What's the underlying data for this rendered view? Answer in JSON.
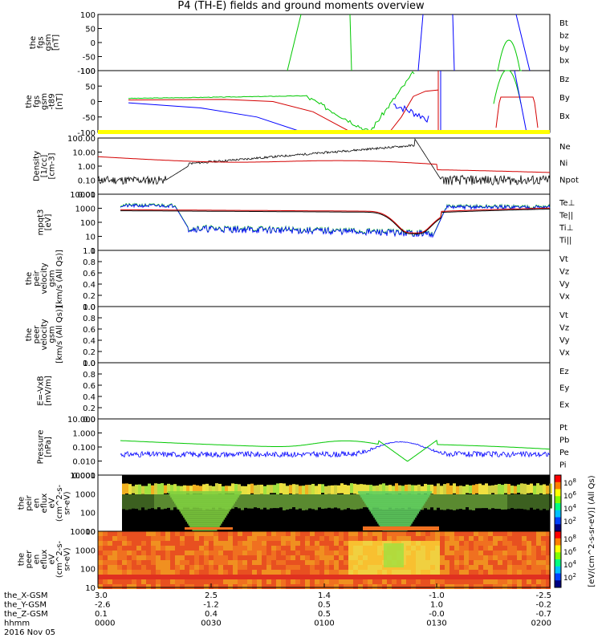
{
  "title": "P4 (TH-E) fields and ground moments overview",
  "colors": {
    "black": "#000000",
    "red": "#d40000",
    "green": "#00c800",
    "blue": "#0000ff",
    "yellow": "#ffff00"
  },
  "chart_data": [
    {
      "type": "line",
      "panel": "fgs_gsm",
      "ylabel": [
        "the",
        "fgs",
        "gsm",
        "[nT]"
      ],
      "yticks": [
        "100",
        "50",
        "0",
        "-50",
        "-100"
      ],
      "ylim": [
        -100,
        100
      ],
      "series": [
        {
          "name": "Bt",
          "color": "#000000"
        },
        {
          "name": "bz",
          "color": "#d40000"
        },
        {
          "name": "by",
          "color": "#00c800"
        },
        {
          "name": "bx",
          "color": "#0000ff"
        }
      ]
    },
    {
      "type": "line",
      "panel": "fgs_gsm_t89",
      "ylabel": [
        "the",
        "fgs",
        "gsm",
        "-t89",
        "[nT]"
      ],
      "yticks": [
        "100",
        "50",
        "0",
        "-50",
        "-100"
      ],
      "ylim": [
        -120,
        120
      ],
      "series": [
        {
          "name": "Bz",
          "color": "#d40000"
        },
        {
          "name": "By",
          "color": "#00c800"
        },
        {
          "name": "Bx",
          "color": "#0000ff"
        }
      ]
    },
    {
      "type": "line",
      "panel": "density",
      "scale": "log",
      "ylabel": [
        "Density",
        "[1/cc]",
        "[cm-3]"
      ],
      "yticks": [
        "100.00",
        "10.00",
        "1.00",
        "0.10",
        "0.01"
      ],
      "series": [
        {
          "name": "Ne",
          "color": "#d40000"
        },
        {
          "name": "Ni",
          "color": "#000000"
        },
        {
          "name": "Npot",
          "color": "#0000ff"
        }
      ]
    },
    {
      "type": "line",
      "panel": "temperature",
      "scale": "log",
      "ylabel": [
        "mpqt3",
        "[eV]"
      ],
      "yticks": [
        "10000",
        "1000",
        "100",
        "10",
        "1"
      ],
      "series": [
        {
          "name": "Te⊥",
          "color": "#d40000"
        },
        {
          "name": "Te||",
          "color": "#000000"
        },
        {
          "name": "Ti⊥",
          "color": "#00c800"
        },
        {
          "name": "Ti||",
          "color": "#00c800"
        }
      ]
    },
    {
      "type": "line",
      "panel": "peir_velocity",
      "ylabel": [
        "the",
        "peir",
        "velocity",
        "gsm",
        "[km/s (All Qs)]"
      ],
      "yticks": [
        "1.0",
        "0.8",
        "0.6",
        "0.4",
        "0.2",
        "0.0"
      ],
      "series": [
        {
          "name": "Vt",
          "color": "#000000"
        },
        {
          "name": "Vz",
          "color": "#d40000"
        },
        {
          "name": "Vy",
          "color": "#00c800"
        },
        {
          "name": "Vx",
          "color": "#0000ff"
        }
      ]
    },
    {
      "type": "line",
      "panel": "peer_velocity",
      "ylabel": [
        "the",
        "peer",
        "velocity",
        "gsm",
        "[km/s (All Qs)]"
      ],
      "yticks": [
        "1.0",
        "0.8",
        "0.6",
        "0.4",
        "0.2",
        "0.0"
      ],
      "series": [
        {
          "name": "Vt",
          "color": "#000000"
        },
        {
          "name": "Vz",
          "color": "#d40000"
        },
        {
          "name": "Vy",
          "color": "#00c800"
        },
        {
          "name": "Vx",
          "color": "#0000ff"
        }
      ]
    },
    {
      "type": "line",
      "panel": "efield",
      "ylabel": [
        "E=-VxB",
        "[mV/m]"
      ],
      "yticks": [
        "1.0",
        "0.8",
        "0.6",
        "0.4",
        "0.2",
        "0.0"
      ],
      "series": [
        {
          "name": "Ez",
          "color": "#d40000"
        },
        {
          "name": "Ey",
          "color": "#00c800"
        },
        {
          "name": "Ex",
          "color": "#0000ff"
        }
      ]
    },
    {
      "type": "line",
      "panel": "pressure",
      "scale": "log",
      "ylabel": [
        "Pressure",
        "[nPa]"
      ],
      "yticks": [
        "10.000",
        "1.000",
        "0.100",
        "0.010",
        "0.001"
      ],
      "series": [
        {
          "name": "Pt",
          "color": "#000000"
        },
        {
          "name": "Pb",
          "color": "#d40000"
        },
        {
          "name": "Pe",
          "color": "#00c800"
        },
        {
          "name": "Pi",
          "color": "#0000ff"
        }
      ]
    },
    {
      "type": "heatmap",
      "panel": "peir_en_eflux",
      "scale": "log",
      "ylabel": [
        "the",
        "peir",
        "en",
        "eflux",
        "eV",
        "(cm^2-s-",
        "sr-eV)"
      ],
      "yticks": [
        "10000",
        "1000",
        "100",
        "10"
      ]
    },
    {
      "type": "heatmap",
      "panel": "peer_en_eflux",
      "scale": "log",
      "ylabel": [
        "the",
        "peer",
        "en",
        "eflux",
        "eV",
        "(cm^2-s-",
        "sr-eV)"
      ],
      "yticks": [
        "10000",
        "1000",
        "100",
        "10"
      ]
    }
  ],
  "colorbar": {
    "label": "[eV/(cm^2-s-sr-eV)] (All Qs)",
    "ticks_top": [
      "10^8",
      "10^6",
      "10^4",
      "10^2"
    ],
    "ticks_bottom": [
      "10^8",
      "10^6",
      "10^4",
      "10^2"
    ]
  },
  "xaxis": {
    "rows": [
      {
        "label": "the_X-GSM",
        "values": [
          "3.0",
          "2.5",
          "1.4",
          "-1.0",
          "-2.5"
        ]
      },
      {
        "label": "the_Y-GSM",
        "values": [
          "-2.6",
          "-1.2",
          "0.5",
          "1.0",
          "-0.2"
        ]
      },
      {
        "label": "the_Z-GSM",
        "values": [
          "0.1",
          "0.4",
          "0.5",
          "-0.0",
          "-0.7"
        ]
      },
      {
        "label": "hhmm",
        "values": [
          "0000",
          "0030",
          "0100",
          "0130",
          "0200"
        ]
      }
    ],
    "date": "2016 Nov 05"
  }
}
